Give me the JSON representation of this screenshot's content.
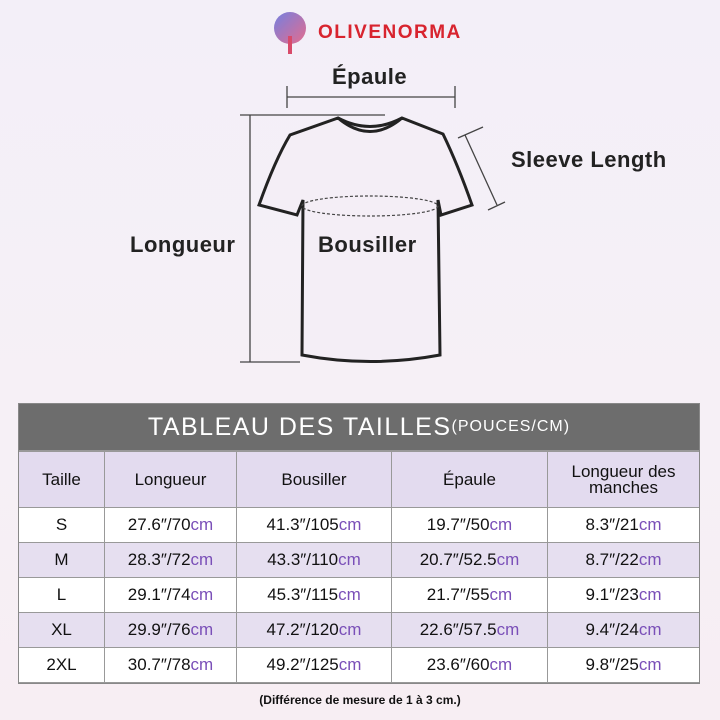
{
  "brand": {
    "name": "OLIVENORMA"
  },
  "diagram": {
    "shoulder": "Épaule",
    "sleeve": "Sleeve Length",
    "length": "Longueur",
    "chest": "Bousiller"
  },
  "table": {
    "title": "TABLEAU DES TAILLES",
    "title_units": "(POUCES/CM)",
    "headers": [
      "Taille",
      "Longueur",
      "Bousiller",
      "Épaule",
      "Longueur des manches"
    ],
    "inch_sep": "″/",
    "cm_unit": "cm",
    "rows": [
      {
        "size": "S",
        "values": [
          [
            "27.6",
            "70"
          ],
          [
            "41.3",
            "105"
          ],
          [
            "19.7",
            "50"
          ],
          [
            "8.3",
            "21"
          ]
        ]
      },
      {
        "size": "M",
        "values": [
          [
            "28.3",
            "72"
          ],
          [
            "43.3",
            "110"
          ],
          [
            "20.7",
            "52.5"
          ],
          [
            "8.7",
            "22"
          ]
        ]
      },
      {
        "size": "L",
        "values": [
          [
            "29.1",
            "74"
          ],
          [
            "45.3",
            "115"
          ],
          [
            "21.7",
            "55"
          ],
          [
            "9.1",
            "23"
          ]
        ]
      },
      {
        "size": "XL",
        "values": [
          [
            "29.9",
            "76"
          ],
          [
            "47.2",
            "120"
          ],
          [
            "22.6",
            "57.5"
          ],
          [
            "9.4",
            "24"
          ]
        ]
      },
      {
        "size": "2XL",
        "values": [
          [
            "30.7",
            "78"
          ],
          [
            "49.2",
            "125"
          ],
          [
            "23.6",
            "60"
          ],
          [
            "9.8",
            "25"
          ]
        ]
      }
    ]
  },
  "footnote": "(Différence de mesure de 1 à 3 cm.)",
  "colors": {
    "brand": "#d8242f",
    "header_bg": "#6d6d6d",
    "accent_cm": "#7a4fb8",
    "row_alt": "#e6dff0"
  }
}
